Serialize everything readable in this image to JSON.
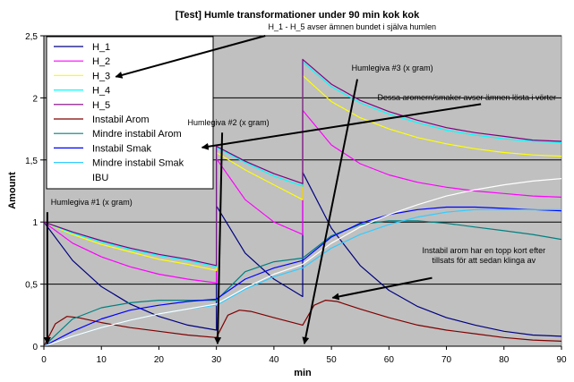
{
  "chart_data": {
    "type": "line",
    "title": "[Test] Humle transformationer under 90 min kok kok",
    "xlabel": "min",
    "ylabel": "Amount",
    "xlim": [
      0,
      90
    ],
    "ylim": [
      0,
      2.5
    ],
    "x_ticks": [
      0,
      10,
      20,
      30,
      40,
      50,
      60,
      70,
      80,
      90
    ],
    "x_tick_labels": [
      "0",
      "10",
      "20",
      "30",
      "40",
      "50",
      "60",
      "70",
      "80",
      "90"
    ],
    "y_ticks": [
      0,
      0.5,
      1,
      1.5,
      2,
      2.5
    ],
    "y_tick_labels": [
      "0",
      "0,5",
      "1",
      "1,5",
      "2",
      "2,5"
    ],
    "grid": true,
    "legend_position": "top-left",
    "series": [
      {
        "name": "H_1",
        "color": "#000080",
        "segments": [
          {
            "x": [
              0,
              5,
              10,
              15,
              20,
              25,
              30
            ],
            "y": [
              1.0,
              0.69,
              0.48,
              0.34,
              0.24,
              0.17,
              0.13
            ]
          },
          {
            "x": [
              30,
              35,
              40,
              45
            ],
            "y": [
              1.13,
              0.75,
              0.54,
              0.4
            ]
          },
          {
            "x": [
              45,
              50,
              55,
              60,
              65,
              70,
              75,
              80,
              85,
              90
            ],
            "y": [
              1.4,
              0.95,
              0.65,
              0.45,
              0.32,
              0.23,
              0.17,
              0.12,
              0.09,
              0.08
            ]
          }
        ]
      },
      {
        "name": "H_2",
        "color": "#ff00ff",
        "segments": [
          {
            "x": [
              0,
              5,
              10,
              15,
              20,
              25,
              30
            ],
            "y": [
              1.0,
              0.83,
              0.72,
              0.64,
              0.58,
              0.54,
              0.51
            ]
          },
          {
            "x": [
              30,
              35,
              40,
              45
            ],
            "y": [
              1.51,
              1.18,
              1.0,
              0.9
            ]
          },
          {
            "x": [
              45,
              50,
              55,
              60,
              65,
              70,
              75,
              80,
              85,
              90
            ],
            "y": [
              1.9,
              1.62,
              1.47,
              1.38,
              1.32,
              1.28,
              1.25,
              1.23,
              1.21,
              1.2
            ]
          }
        ]
      },
      {
        "name": "H_3",
        "color": "#ffff00",
        "segments": [
          {
            "x": [
              0,
              5,
              10,
              15,
              20,
              25,
              30
            ],
            "y": [
              1.0,
              0.9,
              0.82,
              0.76,
              0.7,
              0.66,
              0.61
            ]
          },
          {
            "x": [
              30,
              35,
              40,
              45
            ],
            "y": [
              1.56,
              1.42,
              1.3,
              1.18
            ]
          },
          {
            "x": [
              45,
              50,
              55,
              60,
              65,
              70,
              75,
              80,
              85,
              90
            ],
            "y": [
              2.18,
              1.97,
              1.84,
              1.75,
              1.68,
              1.63,
              1.59,
              1.56,
              1.54,
              1.53
            ]
          }
        ]
      },
      {
        "name": "H_4",
        "color": "#00ffff",
        "segments": [
          {
            "x": [
              0,
              5,
              10,
              15,
              20,
              25,
              30
            ],
            "y": [
              1.0,
              0.91,
              0.84,
              0.78,
              0.73,
              0.69,
              0.64
            ]
          },
          {
            "x": [
              30,
              35,
              40,
              45
            ],
            "y": [
              1.6,
              1.48,
              1.37,
              1.29
            ]
          },
          {
            "x": [
              45,
              50,
              55,
              60,
              65,
              70,
              75,
              80,
              85,
              90
            ],
            "y": [
              2.29,
              2.09,
              1.96,
              1.87,
              1.8,
              1.74,
              1.7,
              1.67,
              1.65,
              1.64
            ]
          }
        ]
      },
      {
        "name": "H_5",
        "color": "#800080",
        "segments": [
          {
            "x": [
              0,
              5,
              10,
              15,
              20,
              25,
              30
            ],
            "y": [
              1.0,
              0.92,
              0.85,
              0.79,
              0.74,
              0.7,
              0.65
            ]
          },
          {
            "x": [
              30,
              35,
              40,
              45
            ],
            "y": [
              1.61,
              1.49,
              1.39,
              1.31
            ]
          },
          {
            "x": [
              45,
              50,
              55,
              60,
              65,
              70,
              75,
              80,
              85,
              90
            ],
            "y": [
              2.31,
              2.11,
              1.98,
              1.89,
              1.82,
              1.76,
              1.72,
              1.69,
              1.66,
              1.65
            ]
          }
        ]
      },
      {
        "name": "Instabil Arom",
        "color": "#800000",
        "segments": [
          {
            "x": [
              0,
              2,
              4,
              6,
              10,
              15,
              20,
              25,
              30
            ],
            "y": [
              0,
              0.18,
              0.24,
              0.23,
              0.19,
              0.15,
              0.12,
              0.09,
              0.07
            ]
          },
          {
            "x": [
              30,
              32,
              34,
              36,
              40,
              45
            ],
            "y": [
              0.07,
              0.25,
              0.29,
              0.28,
              0.23,
              0.17
            ]
          },
          {
            "x": [
              45,
              47,
              49,
              51,
              55,
              60,
              65,
              70,
              75,
              80,
              85,
              90
            ],
            "y": [
              0.17,
              0.33,
              0.37,
              0.36,
              0.3,
              0.23,
              0.17,
              0.13,
              0.1,
              0.07,
              0.05,
              0.04
            ]
          }
        ]
      },
      {
        "name": "Mindre instabil Arom",
        "color": "#008080",
        "segments": [
          {
            "x": [
              0,
              5,
              10,
              15,
              20,
              25,
              30
            ],
            "y": [
              0,
              0.22,
              0.31,
              0.35,
              0.37,
              0.37,
              0.37
            ]
          },
          {
            "x": [
              30,
              35,
              40,
              45
            ],
            "y": [
              0.37,
              0.6,
              0.68,
              0.71
            ]
          },
          {
            "x": [
              45,
              50,
              55,
              60,
              65,
              70,
              75,
              80,
              85,
              90
            ],
            "y": [
              0.71,
              0.89,
              0.98,
              1.01,
              1.01,
              0.99,
              0.96,
              0.93,
              0.9,
              0.86
            ]
          }
        ]
      },
      {
        "name": "Instabil Smak",
        "color": "#0000ff",
        "segments": [
          {
            "x": [
              0,
              5,
              10,
              15,
              20,
              25,
              30
            ],
            "y": [
              0,
              0.12,
              0.22,
              0.29,
              0.33,
              0.36,
              0.38
            ]
          },
          {
            "x": [
              30,
              35,
              40,
              45
            ],
            "y": [
              0.38,
              0.54,
              0.63,
              0.69
            ]
          },
          {
            "x": [
              45,
              50,
              55,
              60,
              65,
              70,
              75,
              80,
              85,
              90
            ],
            "y": [
              0.69,
              0.88,
              0.99,
              1.06,
              1.1,
              1.12,
              1.12,
              1.11,
              1.1,
              1.09
            ]
          }
        ]
      },
      {
        "name": "Mindre instabil Smak",
        "color": "#33ccff",
        "segments": [
          {
            "x": [
              0,
              5,
              10,
              15,
              20,
              25,
              30
            ],
            "y": [
              0,
              0.08,
              0.15,
              0.21,
              0.26,
              0.3,
              0.33
            ]
          },
          {
            "x": [
              30,
              35,
              40,
              45
            ],
            "y": [
              0.33,
              0.46,
              0.56,
              0.63
            ]
          },
          {
            "x": [
              45,
              50,
              55,
              60,
              65,
              70,
              75,
              80,
              85,
              90
            ],
            "y": [
              0.63,
              0.79,
              0.9,
              0.98,
              1.04,
              1.08,
              1.1,
              1.1,
              1.1,
              1.1
            ]
          }
        ]
      },
      {
        "name": "IBU",
        "color": "#ffffff",
        "segments": [
          {
            "x": [
              0,
              5,
              10,
              15,
              20,
              25,
              30
            ],
            "y": [
              0,
              0.08,
              0.15,
              0.21,
              0.26,
              0.3,
              0.34
            ]
          },
          {
            "x": [
              30,
              35,
              40,
              45
            ],
            "y": [
              0.34,
              0.47,
              0.58,
              0.66
            ]
          },
          {
            "x": [
              45,
              50,
              55,
              60,
              65,
              70,
              75,
              80,
              85,
              90
            ],
            "y": [
              0.66,
              0.83,
              0.96,
              1.06,
              1.14,
              1.21,
              1.26,
              1.3,
              1.33,
              1.35
            ]
          }
        ]
      }
    ],
    "annotations": [
      {
        "lines": [
          "H_1 - H_5 avser ämnen bundet i själva humlen"
        ],
        "anchor": "start",
        "text_at": [
          39.0,
          2.55
        ],
        "arrow_from": [
          38.5,
          2.5
        ],
        "arrow_to": [
          12.5,
          2.17
        ]
      },
      {
        "lines": [
          "Humlegiva #3 (x gram)"
        ],
        "anchor": "start",
        "text_at": [
          53.5,
          2.22
        ],
        "arrow_from": [
          54.5,
          2.15
        ],
        "arrow_to": [
          45.3,
          0.02
        ]
      },
      {
        "lines": [
          "Dessa aromern/smaker avser ämnen lösta i vörter"
        ],
        "anchor": "start",
        "text_at": [
          58.0,
          1.98
        ],
        "arrow_from": [
          76.0,
          1.95
        ],
        "arrow_to": [
          27.5,
          1.6
        ]
      },
      {
        "lines": [
          "Humlegiva #2 (x gram)"
        ],
        "anchor": "start",
        "text_at": [
          25.0,
          1.78
        ],
        "arrow_from": [
          31.0,
          1.72
        ],
        "arrow_to": [
          30.2,
          0.02
        ]
      },
      {
        "lines": [
          "Humlegiva #1 (x gram)"
        ],
        "anchor": "start",
        "text_at": [
          1.2,
          1.14
        ],
        "arrow_from": [
          0.6,
          1.08
        ],
        "arrow_to": [
          0.6,
          0.02
        ]
      },
      {
        "lines": [
          "Instabil arom har en topp kort efter",
          "tillsats för att sedan klinga av"
        ],
        "anchor": "middle",
        "text_at": [
          76.5,
          0.75
        ],
        "arrow_from": [
          67.5,
          0.55
        ],
        "arrow_to": [
          50.2,
          0.39
        ]
      }
    ]
  }
}
